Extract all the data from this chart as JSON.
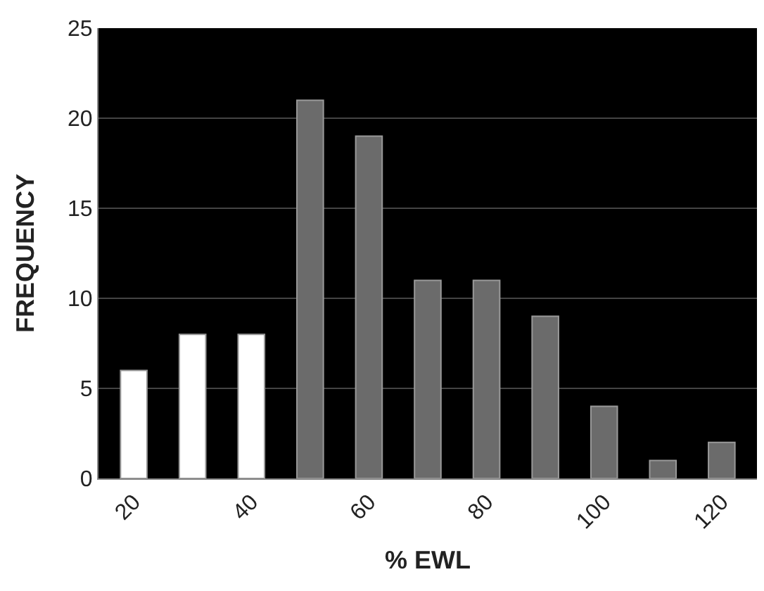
{
  "chart_data": {
    "type": "bar",
    "xlabel": "% EWL",
    "ylabel": "FREQUENCY",
    "categories": [
      "20",
      null,
      "40",
      null,
      "60",
      null,
      "80",
      null,
      "100",
      null,
      "120"
    ],
    "values": [
      6,
      8,
      8,
      21,
      19,
      11,
      11,
      9,
      4,
      1,
      2
    ],
    "colors": [
      "#ffffff",
      "#ffffff",
      "#ffffff",
      "#6b6b6b",
      "#6b6b6b",
      "#6b6b6b",
      "#6b6b6b",
      "#6b6b6b",
      "#6b6b6b",
      "#6b6b6b",
      "#6b6b6b"
    ],
    "ylim": [
      0,
      25
    ],
    "yticks": [
      0,
      5,
      10,
      15,
      20,
      25
    ],
    "grid": "y"
  }
}
